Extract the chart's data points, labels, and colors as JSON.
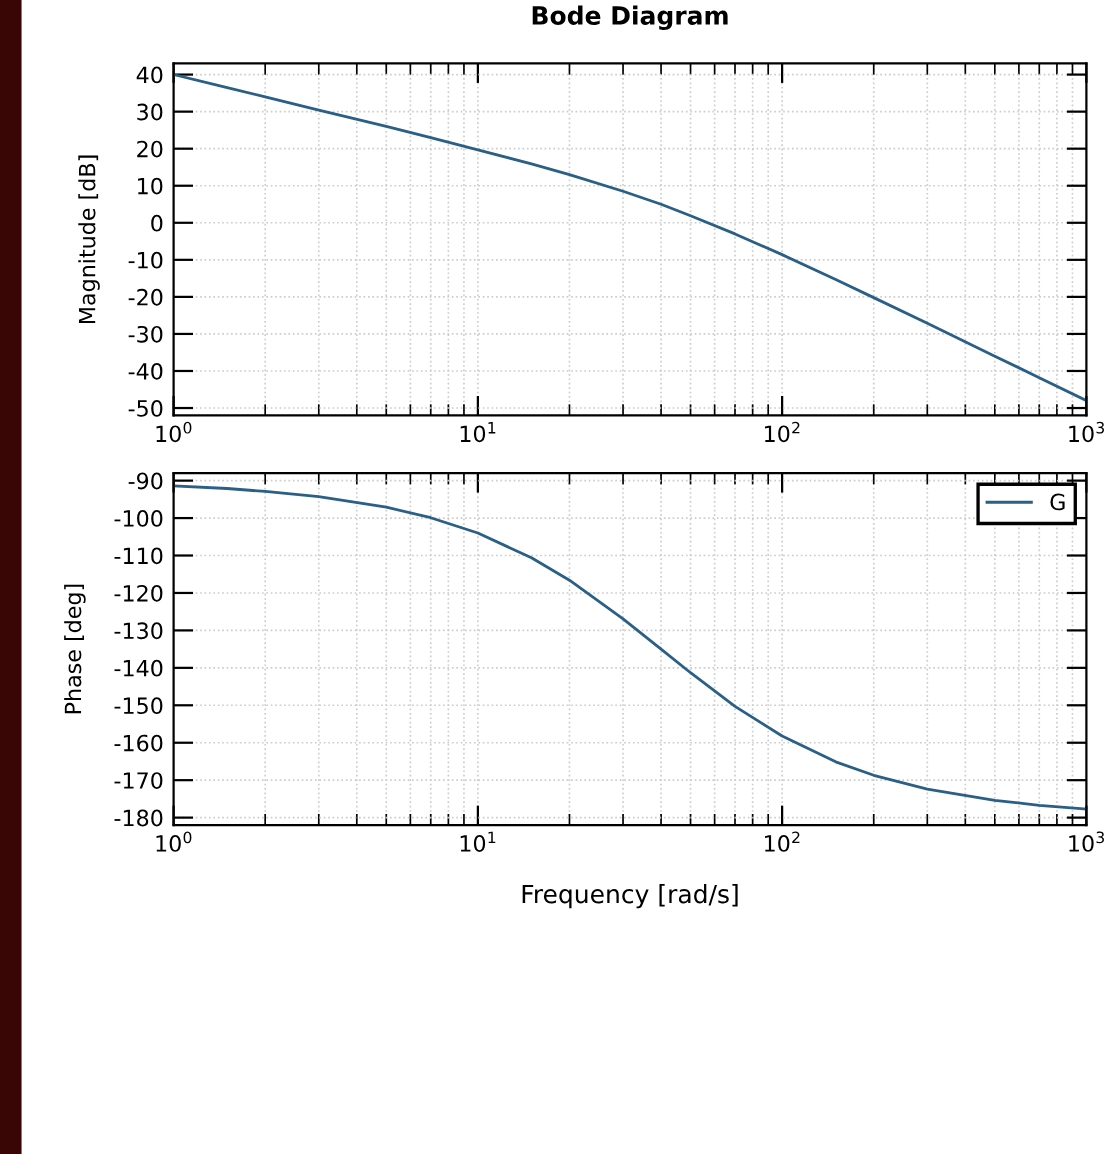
{
  "chart_data": [
    {
      "type": "line",
      "title": "Bode Diagram",
      "ylabel": "Magnitude [dB]",
      "log": "x",
      "grid": true,
      "x": [
        1,
        1.5,
        2,
        3,
        5,
        7,
        10,
        15,
        20,
        30,
        40,
        50,
        70,
        100,
        150,
        200,
        300,
        500,
        700,
        1000
      ],
      "series": [
        {
          "color": "#2a5f86",
          "values": [
            40.0,
            36.5,
            34.0,
            30.4,
            26.0,
            23.0,
            19.7,
            15.9,
            13.0,
            8.5,
            5.0,
            1.9,
            -3.0,
            -8.6,
            -15.3,
            -20.2,
            -27.1,
            -36.0,
            -41.8,
            -48.0
          ]
        }
      ],
      "xlim": [
        1,
        1000
      ],
      "xticks": [
        {
          "value": 1,
          "label": "10$^{0}$"
        },
        {
          "value": 10,
          "label": "10$^{1}$"
        },
        {
          "value": 100,
          "label": "10$^{2}$"
        },
        {
          "value": 1000,
          "label": "10$^{3}$"
        }
      ],
      "ylim": [
        -52,
        43
      ],
      "yticks": [
        -50,
        -40,
        -30,
        -20,
        -10,
        0,
        10,
        20,
        30,
        40
      ]
    },
    {
      "type": "line",
      "ylabel": "Phase [deg]",
      "xlabel": "Frequency [rad/s]",
      "log": "x",
      "grid": true,
      "legend": "top right",
      "x": [
        1,
        1.5,
        2,
        3,
        5,
        7,
        10,
        15,
        20,
        30,
        40,
        50,
        70,
        100,
        150,
        200,
        300,
        500,
        700,
        1000
      ],
      "series": [
        {
          "name": "G",
          "color": "#2a5f86",
          "values": [
            -91.4,
            -92.1,
            -92.9,
            -94.3,
            -97.1,
            -99.9,
            -104.0,
            -110.6,
            -116.6,
            -126.9,
            -135.0,
            -141.3,
            -150.3,
            -158.2,
            -165.1,
            -168.7,
            -172.4,
            -175.4,
            -176.7,
            -177.7
          ]
        }
      ],
      "xlim": [
        1,
        1000
      ],
      "xticks": [
        {
          "value": 1,
          "label": "10$^{0}$"
        },
        {
          "value": 10,
          "label": "10$^{1}$"
        },
        {
          "value": 100,
          "label": "10$^{2}$"
        },
        {
          "value": 1000,
          "label": "10$^{3}$"
        }
      ],
      "ylim": [
        -182,
        -88
      ],
      "yticks": [
        -180,
        -170,
        -160,
        -150,
        -140,
        -130,
        -120,
        -110,
        -100,
        -90
      ]
    }
  ]
}
